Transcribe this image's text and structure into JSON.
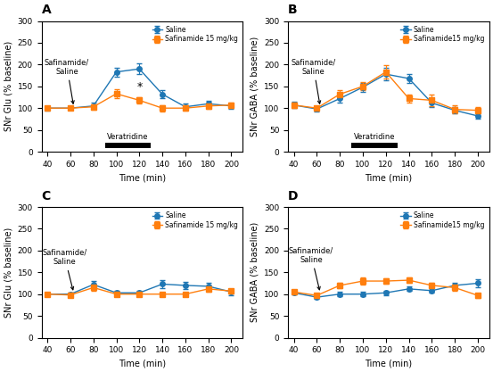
{
  "chart_data": [
    {
      "type": "line",
      "title": "A",
      "xlabel": "Time (min)",
      "ylabel": "SNr Glu (% baseline)",
      "x": [
        40,
        60,
        80,
        100,
        120,
        140,
        160,
        180,
        200
      ],
      "series": [
        {
          "name": "Saline",
          "marker": "o",
          "values": [
            100,
            100,
            105,
            183,
            190,
            132,
            103,
            110,
            105
          ],
          "errors": [
            5,
            4,
            7,
            10,
            12,
            10,
            7,
            7,
            6
          ]
        },
        {
          "name": "Safinamide 15 mg/kg",
          "marker": "s",
          "values": [
            100,
            100,
            103,
            133,
            118,
            100,
            100,
            105,
            107
          ],
          "errors": [
            4,
            4,
            6,
            10,
            8,
            7,
            6,
            7,
            6
          ]
        }
      ],
      "annotations": [
        {
          "text": "Safinamide/\nSaline",
          "xy": [
            63,
            102
          ],
          "xytext": [
            57,
            175
          ]
        },
        {
          "text": "*",
          "x": 120,
          "y": 136
        },
        {
          "text": "Veratridine",
          "x_start": 90,
          "x_end": 130
        }
      ],
      "xlim": [
        35,
        210
      ],
      "ylim": [
        0,
        300
      ],
      "xticks": [
        40,
        60,
        80,
        100,
        120,
        140,
        160,
        180,
        200
      ],
      "yticks": [
        0,
        50,
        100,
        150,
        200,
        250,
        300
      ],
      "legend": "upper right"
    },
    {
      "type": "line",
      "title": "B",
      "xlabel": "Time (min)",
      "ylabel": "SNr GABA (% baseline)",
      "x": [
        40,
        60,
        80,
        100,
        120,
        140,
        160,
        180,
        200
      ],
      "series": [
        {
          "name": "Saline",
          "marker": "o",
          "values": [
            107,
            98,
            122,
            148,
            178,
            168,
            112,
            95,
            82
          ],
          "errors": [
            7,
            5,
            9,
            10,
            14,
            10,
            10,
            7,
            7
          ]
        },
        {
          "name": "Safinamide15 mg/kg",
          "marker": "s",
          "values": [
            107,
            100,
            132,
            150,
            183,
            122,
            118,
            97,
            95
          ],
          "errors": [
            6,
            5,
            9,
            9,
            16,
            10,
            13,
            9,
            7
          ]
        }
      ],
      "annotations": [
        {
          "text": "Safinamide/\nSaline",
          "xy": [
            63,
            102
          ],
          "xytext": [
            57,
            175
          ]
        },
        {
          "text": "Veratridine",
          "x_start": 90,
          "x_end": 130
        }
      ],
      "xlim": [
        35,
        210
      ],
      "ylim": [
        0,
        300
      ],
      "xticks": [
        40,
        60,
        80,
        100,
        120,
        140,
        160,
        180,
        200
      ],
      "yticks": [
        0,
        50,
        100,
        150,
        200,
        250,
        300
      ],
      "legend": "upper right"
    },
    {
      "type": "line",
      "title": "C",
      "xlabel": "Time (min)",
      "ylabel": "SNr Glu (% baseline)",
      "x": [
        40,
        60,
        80,
        100,
        120,
        140,
        160,
        180,
        200
      ],
      "series": [
        {
          "name": "Saline",
          "marker": "o",
          "values": [
            100,
            100,
            122,
            103,
            103,
            123,
            120,
            118,
            105
          ],
          "errors": [
            4,
            4,
            9,
            5,
            5,
            9,
            9,
            9,
            7
          ]
        },
        {
          "name": "Safinamide 15 mg/kg",
          "marker": "s",
          "values": [
            100,
            98,
            115,
            100,
            100,
            100,
            100,
            112,
            107
          ],
          "errors": [
            4,
            4,
            7,
            5,
            4,
            4,
            4,
            7,
            5
          ]
        }
      ],
      "annotations": [
        {
          "text": "Safinamide/\nSaline",
          "xy": [
            63,
            102
          ],
          "xytext": [
            55,
            165
          ]
        }
      ],
      "xlim": [
        35,
        210
      ],
      "ylim": [
        0,
        300
      ],
      "xticks": [
        40,
        60,
        80,
        100,
        120,
        140,
        160,
        180,
        200
      ],
      "yticks": [
        0,
        50,
        100,
        150,
        200,
        250,
        300
      ],
      "legend": "upper right"
    },
    {
      "type": "line",
      "title": "D",
      "xlabel": "Time (min)",
      "ylabel": "SNr GABA (% baseline)",
      "x": [
        40,
        60,
        80,
        100,
        120,
        140,
        160,
        180,
        200
      ],
      "series": [
        {
          "name": "Saline",
          "marker": "o",
          "values": [
            103,
            93,
            100,
            100,
            103,
            112,
            108,
            120,
            125
          ],
          "errors": [
            4,
            4,
            5,
            5,
            5,
            5,
            5,
            7,
            9
          ]
        },
        {
          "name": "Safinamide15 mg/kg",
          "marker": "s",
          "values": [
            105,
            97,
            120,
            130,
            130,
            132,
            120,
            115,
            97
          ],
          "errors": [
            4,
            4,
            6,
            8,
            7,
            7,
            6,
            7,
            5
          ]
        }
      ],
      "annotations": [
        {
          "text": "Safinamide/\nSaline",
          "xy": [
            63,
            102
          ],
          "xytext": [
            55,
            170
          ]
        }
      ],
      "xlim": [
        35,
        210
      ],
      "ylim": [
        0,
        300
      ],
      "xticks": [
        40,
        60,
        80,
        100,
        120,
        140,
        160,
        180,
        200
      ],
      "yticks": [
        0,
        50,
        100,
        150,
        200,
        250,
        300
      ],
      "legend": "upper right"
    }
  ]
}
